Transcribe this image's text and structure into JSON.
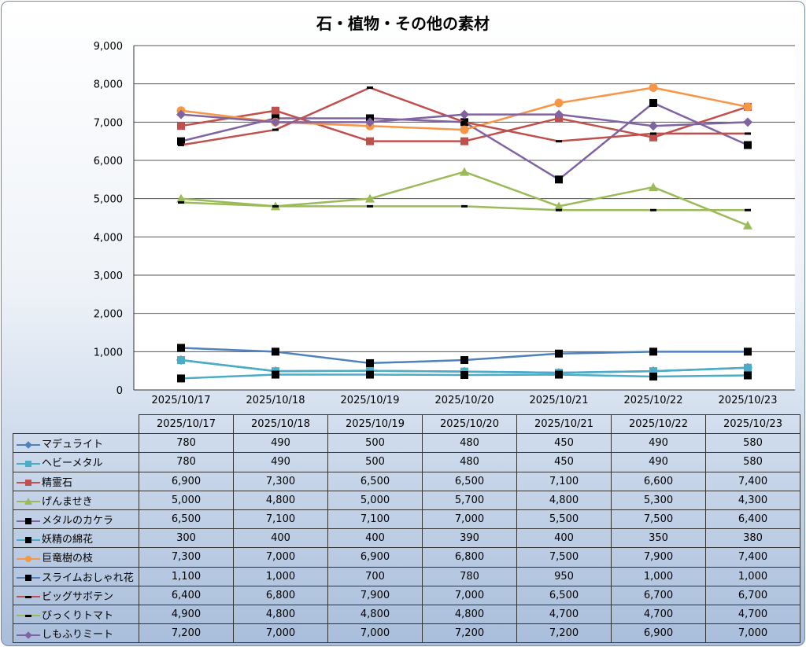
{
  "chart_data": {
    "type": "line",
    "title": "石・植物・その他の素材",
    "categories": [
      "2025/10/17",
      "2025/10/18",
      "2025/10/19",
      "2025/10/20",
      "2025/10/21",
      "2025/10/22",
      "2025/10/23"
    ],
    "ylim": [
      0,
      9000
    ],
    "yticks": [
      "0",
      "1,000",
      "2,000",
      "3,000",
      "4,000",
      "5,000",
      "6,000",
      "7,000",
      "8,000",
      "9,000"
    ],
    "grid": true,
    "legend": "data-table",
    "series": [
      {
        "name": "マデュライト",
        "color": "#4f81bd",
        "marker": "diamond",
        "values": [
          780,
          490,
          500,
          480,
          450,
          490,
          580
        ],
        "labels": [
          "780",
          "490",
          "500",
          "480",
          "450",
          "490",
          "580"
        ]
      },
      {
        "name": "ヘビーメタル",
        "color": "#4bacc6",
        "marker": "square",
        "values": [
          780,
          490,
          500,
          480,
          450,
          490,
          580
        ],
        "labels": [
          "780",
          "490",
          "500",
          "480",
          "450",
          "490",
          "580"
        ]
      },
      {
        "name": "精霊石",
        "color": "#c0504d",
        "marker": "square",
        "values": [
          6900,
          7300,
          6500,
          6500,
          7100,
          6600,
          7400
        ],
        "labels": [
          "6,900",
          "7,300",
          "6,500",
          "6,500",
          "7,100",
          "6,600",
          "7,400"
        ]
      },
      {
        "name": "げんませき",
        "color": "#9bbb59",
        "marker": "triangle",
        "values": [
          5000,
          4800,
          5000,
          5700,
          4800,
          5300,
          4300
        ],
        "labels": [
          "5,000",
          "4,800",
          "5,000",
          "5,700",
          "4,800",
          "5,300",
          "4,300"
        ]
      },
      {
        "name": "メタルのカケラ",
        "color": "#8064a2",
        "marker": "blacksquare",
        "values": [
          6500,
          7100,
          7100,
          7000,
          5500,
          7500,
          6400
        ],
        "labels": [
          "6,500",
          "7,100",
          "7,100",
          "7,000",
          "5,500",
          "7,500",
          "6,400"
        ]
      },
      {
        "name": "妖精の綿花",
        "color": "#4bacc6",
        "marker": "blacksquare",
        "values": [
          300,
          400,
          400,
          390,
          400,
          350,
          380
        ],
        "labels": [
          "300",
          "400",
          "400",
          "390",
          "400",
          "350",
          "380"
        ]
      },
      {
        "name": "巨竜樹の枝",
        "color": "#f79646",
        "marker": "circle",
        "values": [
          7300,
          7000,
          6900,
          6800,
          7500,
          7900,
          7400
        ],
        "labels": [
          "7,300",
          "7,000",
          "6,900",
          "6,800",
          "7,500",
          "7,900",
          "7,400"
        ]
      },
      {
        "name": "スライムおしゃれ花",
        "color": "#4f81bd",
        "marker": "blacksquare",
        "values": [
          1100,
          1000,
          700,
          780,
          950,
          1000,
          1000
        ],
        "labels": [
          "1,100",
          "1,000",
          "700",
          "780",
          "950",
          "1,000",
          "1,000"
        ]
      },
      {
        "name": "ビッグサボテン",
        "color": "#c0504d",
        "marker": "dash",
        "values": [
          6400,
          6800,
          7900,
          7000,
          6500,
          6700,
          6700
        ],
        "labels": [
          "6,400",
          "6,800",
          "7,900",
          "7,000",
          "6,500",
          "6,700",
          "6,700"
        ]
      },
      {
        "name": "びっくりトマト",
        "color": "#9bbb59",
        "marker": "dash",
        "values": [
          4900,
          4800,
          4800,
          4800,
          4700,
          4700,
          4700
        ],
        "labels": [
          "4,900",
          "4,800",
          "4,800",
          "4,800",
          "4,700",
          "4,700",
          "4,700"
        ]
      },
      {
        "name": "しもふりミート",
        "color": "#8064a2",
        "marker": "diamond",
        "values": [
          7200,
          7000,
          7000,
          7200,
          7200,
          6900,
          7000
        ],
        "labels": [
          "7,200",
          "7,000",
          "7,000",
          "7,200",
          "7,200",
          "6,900",
          "7,000"
        ]
      }
    ]
  }
}
